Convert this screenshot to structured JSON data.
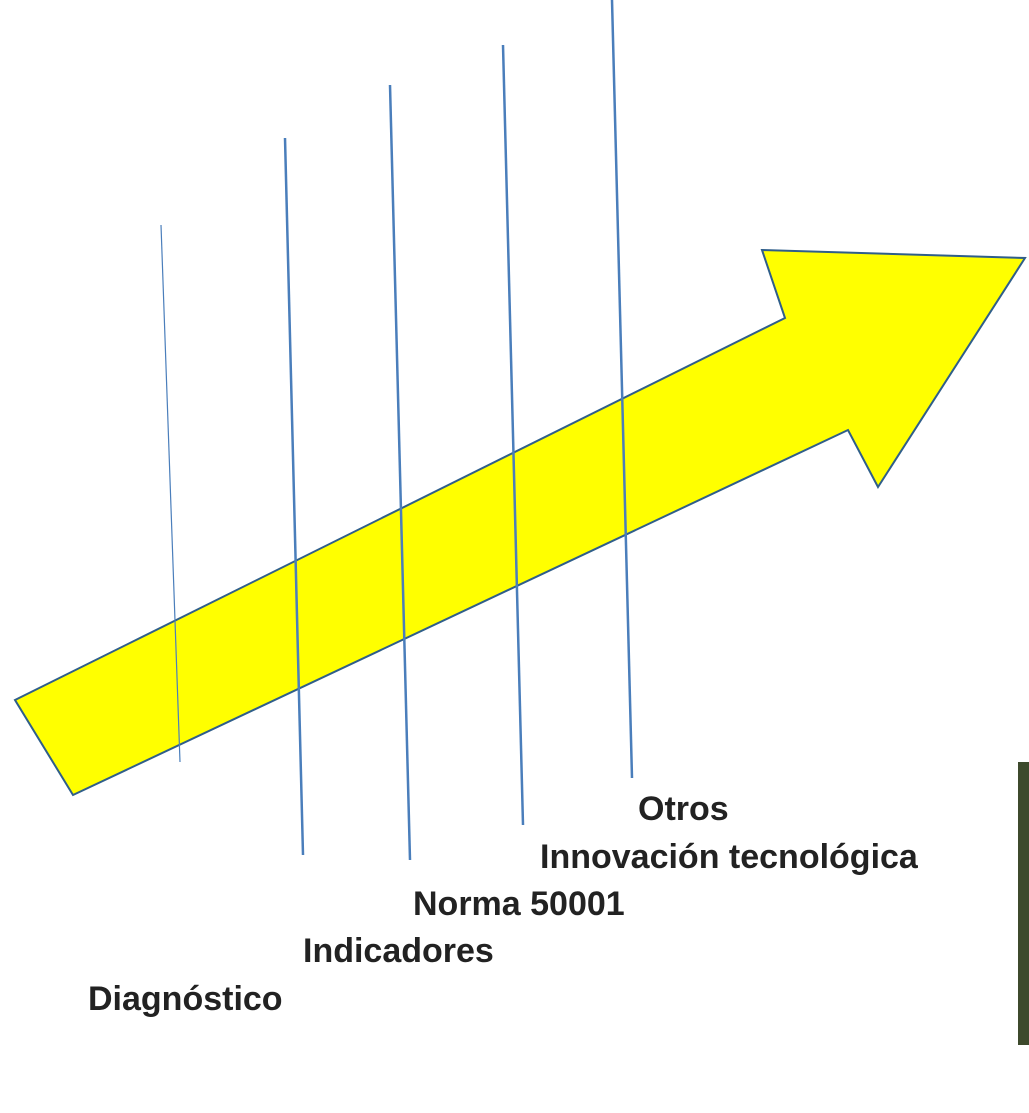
{
  "labels": [
    "Diagnóstico",
    "Indicadores",
    "Norma 50001",
    "Innovación tecnológica",
    "Otros"
  ]
}
